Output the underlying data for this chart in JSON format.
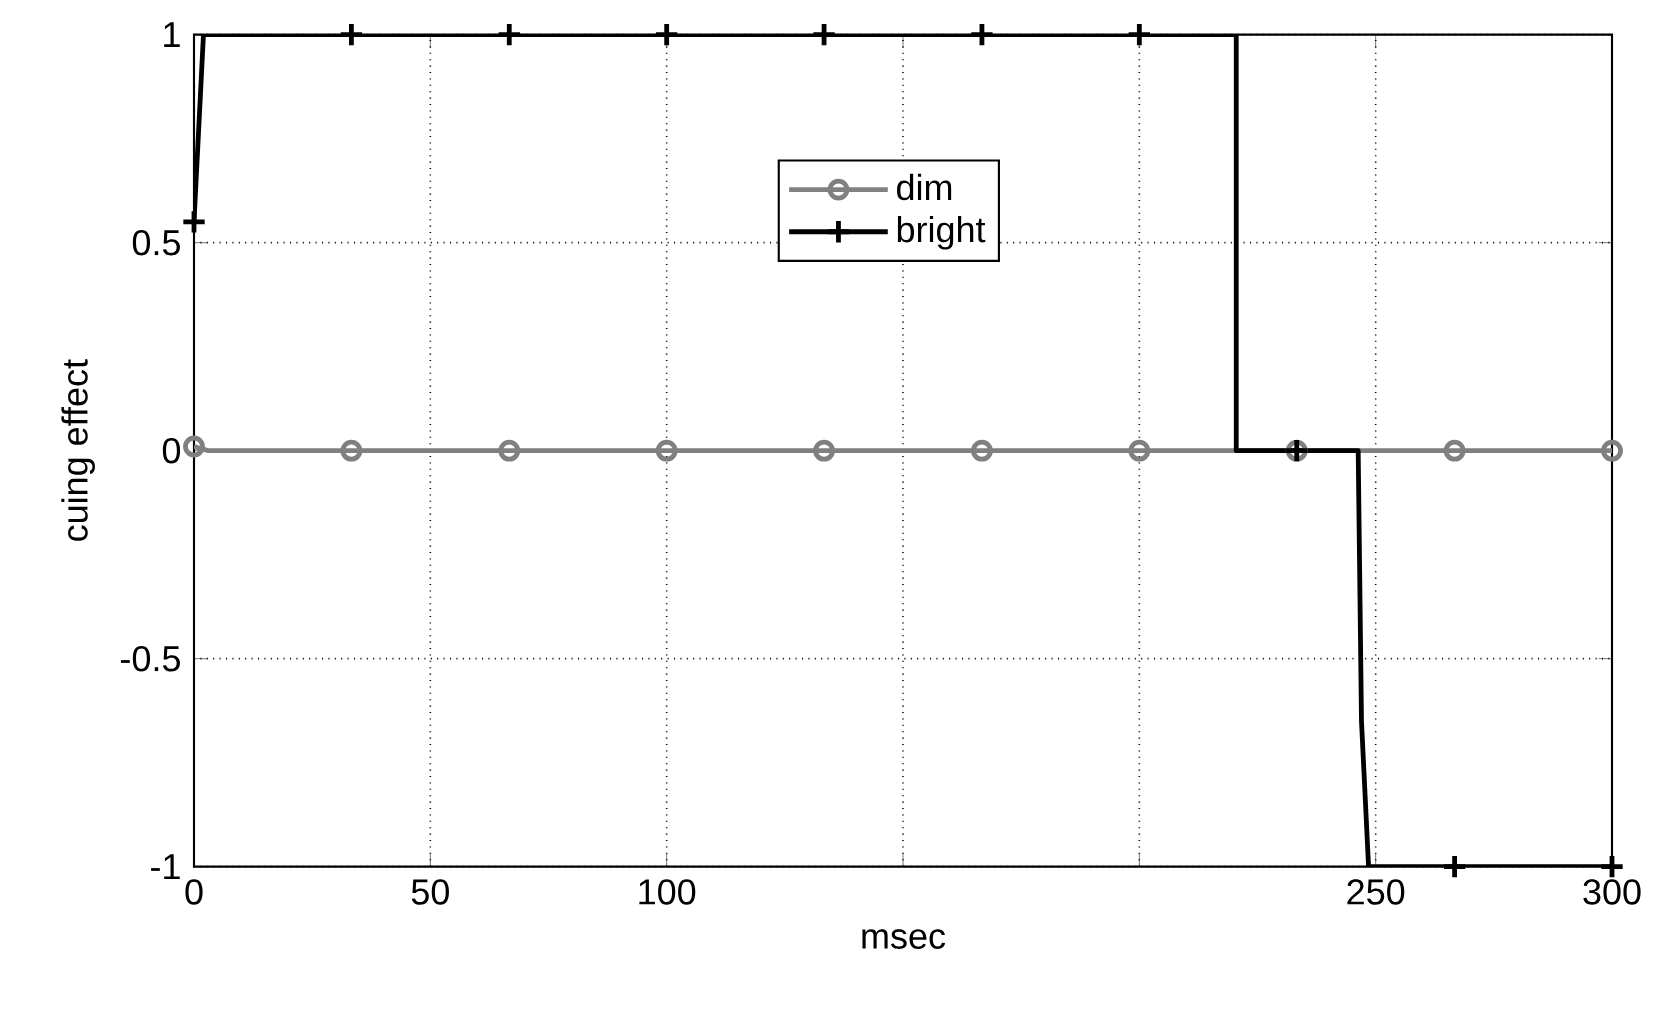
{
  "chart_data": {
    "type": "line",
    "xlabel": "msec",
    "ylabel": "cuing effect",
    "xlim": [
      0,
      300
    ],
    "ylim": [
      -1,
      1
    ],
    "xticks": [
      0,
      50,
      100,
      {
        "value": 150,
        "label": null
      },
      {
        "value": 200,
        "label": null
      },
      250,
      300
    ],
    "yticks": [
      -1,
      -0.5,
      0,
      0.5,
      1
    ],
    "grid": true,
    "legend": "top",
    "series": [
      {
        "name": "dim",
        "color": "#808080",
        "marker": "circle",
        "x": [
          0,
          3,
          33.3,
          66.7,
          100,
          133.3,
          166.7,
          200,
          233.3,
          266.7,
          300
        ],
        "values": [
          0.01,
          0,
          0,
          0,
          0,
          0,
          0,
          0,
          0,
          0,
          0
        ]
      },
      {
        "name": "bright",
        "color": "#000000",
        "marker": "cross",
        "x": [
          0,
          2,
          33.3,
          66.7,
          100,
          133.3,
          166.7,
          200,
          220.5,
          220.5,
          233.3,
          246.3,
          247,
          248.5,
          266.7,
          300
        ],
        "values": [
          0.55,
          1,
          1,
          1,
          1,
          1,
          1,
          1,
          1,
          0,
          0,
          0,
          -0.65,
          -1,
          -1,
          -1
        ]
      }
    ]
  }
}
